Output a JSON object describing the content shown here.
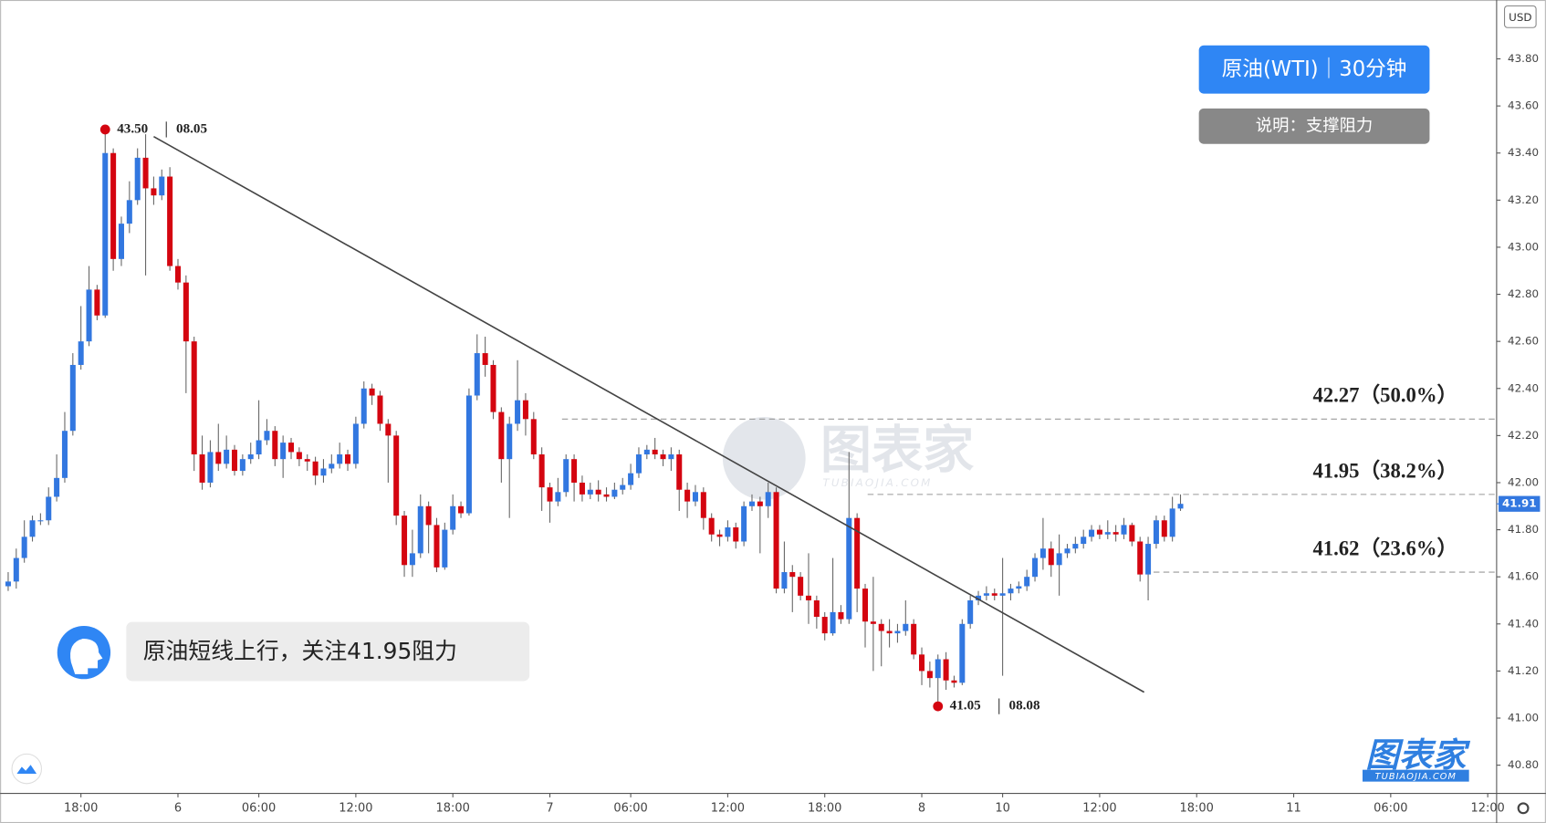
{
  "chart_data": {
    "type": "candlestick",
    "title": "原油(WTI)｜30分钟",
    "subtitle": "说明：支撑阻力",
    "comment": "原油短线上行，关注41.95阻力",
    "currency": "USD",
    "watermark": {
      "name": "图表家",
      "site": "TUBIAOJIA.COM"
    },
    "up_color": "#3277e0",
    "down_color": "#d40510",
    "open": [
      41.56,
      41.58,
      41.68,
      41.77,
      41.84,
      41.84,
      41.94,
      42.02,
      42.22,
      42.5,
      42.6,
      42.82,
      42.71,
      43.4,
      42.95,
      43.1,
      43.2,
      43.38,
      43.25,
      43.22,
      43.3,
      42.92,
      42.85,
      42.6,
      42.12,
      42.0,
      42.13,
      42.08,
      42.14,
      42.05,
      42.1,
      42.12,
      42.18,
      42.22,
      42.1,
      42.17,
      42.13,
      42.1,
      42.09,
      42.03,
      42.06,
      42.08,
      42.12,
      42.08,
      42.25,
      42.4,
      42.37,
      42.25,
      42.2,
      41.86,
      41.65,
      41.7,
      41.9,
      41.82,
      41.64,
      41.8,
      41.9,
      41.87,
      42.37,
      42.55,
      42.5,
      42.3,
      42.1,
      42.25,
      42.35,
      42.27,
      42.12,
      41.98,
      41.92,
      41.96,
      42.1,
      42.0,
      41.95,
      41.97,
      41.95,
      41.94,
      41.97,
      41.99,
      42.04,
      42.12,
      42.14,
      42.12,
      42.1,
      42.12,
      41.97,
      41.92,
      41.96,
      41.85,
      41.78,
      41.77,
      41.81,
      41.75,
      41.9,
      41.92,
      41.9,
      41.96,
      41.55,
      41.62,
      41.6,
      41.52,
      41.5,
      41.43,
      41.36,
      41.45,
      41.42,
      41.85,
      41.55,
      41.41,
      41.4,
      41.37,
      41.36,
      41.37,
      41.4,
      41.27,
      41.2,
      41.17,
      41.25,
      41.16,
      41.15,
      41.4,
      41.5,
      41.52,
      41.53,
      41.52,
      41.53,
      41.55,
      41.56,
      41.6,
      41.68,
      41.72,
      41.65,
      41.7,
      41.72,
      41.74,
      41.77,
      41.8,
      41.78,
      41.79,
      41.78,
      41.82,
      41.75,
      41.61,
      41.74,
      41.84,
      41.77,
      41.89
    ],
    "high": [
      41.62,
      41.72,
      41.84,
      41.86,
      41.87,
      41.98,
      42.12,
      42.3,
      42.55,
      42.75,
      42.92,
      42.84,
      43.5,
      43.42,
      43.13,
      43.28,
      43.42,
      43.48,
      43.3,
      43.33,
      43.34,
      42.95,
      42.88,
      42.62,
      42.2,
      42.18,
      42.25,
      42.2,
      42.16,
      42.12,
      42.17,
      42.35,
      42.27,
      42.24,
      42.2,
      42.19,
      42.15,
      42.12,
      42.11,
      42.1,
      42.12,
      42.17,
      42.14,
      42.28,
      42.43,
      42.42,
      42.39,
      42.27,
      42.22,
      41.88,
      41.8,
      41.95,
      41.92,
      41.85,
      41.83,
      41.95,
      41.92,
      42.4,
      42.63,
      42.62,
      42.52,
      42.32,
      42.28,
      42.52,
      42.38,
      42.3,
      42.15,
      42.0,
      42.02,
      42.12,
      42.12,
      42.03,
      42.0,
      42.01,
      41.98,
      42.0,
      42.02,
      42.08,
      42.15,
      42.16,
      42.19,
      42.14,
      42.15,
      42.14,
      42.0,
      41.99,
      41.98,
      41.87,
      41.8,
      41.84,
      41.83,
      41.92,
      41.95,
      41.94,
      42.0,
      41.98,
      41.75,
      41.65,
      41.62,
      41.7,
      41.52,
      41.45,
      41.68,
      41.48,
      42.13,
      41.87,
      41.57,
      41.6,
      41.42,
      41.42,
      41.4,
      41.5,
      41.42,
      41.3,
      41.24,
      41.27,
      41.28,
      41.18,
      41.42,
      41.52,
      41.54,
      41.56,
      41.55,
      41.68,
      41.57,
      41.58,
      41.63,
      41.7,
      41.85,
      41.75,
      41.78,
      41.74,
      41.77,
      41.8,
      41.82,
      41.82,
      41.84,
      41.82,
      41.85,
      41.83,
      41.77,
      41.77,
      41.86,
      41.86,
      41.94,
      41.95
    ],
    "low": [
      41.54,
      41.55,
      41.66,
      41.75,
      41.82,
      41.82,
      41.92,
      42.0,
      42.2,
      42.48,
      42.58,
      42.69,
      42.7,
      42.9,
      42.92,
      43.06,
      43.18,
      42.88,
      43.18,
      43.2,
      42.9,
      42.82,
      42.38,
      42.05,
      41.97,
      41.98,
      42.05,
      42.06,
      42.03,
      42.03,
      42.08,
      42.1,
      42.16,
      42.07,
      42.02,
      42.1,
      42.07,
      42.05,
      41.99,
      42.0,
      42.04,
      42.06,
      42.05,
      42.06,
      42.23,
      42.33,
      42.22,
      42.0,
      41.82,
      41.6,
      41.6,
      41.68,
      41.7,
      41.62,
      41.63,
      41.78,
      41.85,
      41.86,
      42.35,
      42.45,
      42.27,
      42.0,
      41.85,
      42.22,
      42.2,
      42.1,
      41.88,
      41.83,
      41.9,
      41.94,
      41.92,
      41.92,
      41.93,
      41.92,
      41.92,
      41.93,
      41.95,
      41.97,
      42.02,
      42.1,
      42.1,
      42.07,
      42.05,
      41.88,
      41.85,
      41.9,
      41.8,
      41.75,
      41.73,
      41.75,
      41.72,
      41.73,
      41.88,
      41.7,
      41.85,
      41.53,
      41.53,
      41.45,
      41.5,
      41.4,
      41.38,
      41.33,
      41.35,
      41.4,
      41.4,
      41.45,
      41.3,
      41.2,
      41.22,
      41.3,
      41.32,
      41.35,
      41.25,
      41.14,
      41.13,
      41.05,
      41.12,
      41.13,
      41.14,
      41.38,
      41.48,
      41.5,
      41.5,
      41.18,
      41.5,
      41.53,
      41.54,
      41.58,
      41.63,
      41.6,
      41.52,
      41.68,
      41.7,
      41.72,
      41.75,
      41.76,
      41.76,
      41.75,
      41.76,
      41.73,
      41.58,
      41.5,
      41.72,
      41.75,
      41.75,
      41.88
    ],
    "close": [
      41.58,
      41.68,
      41.77,
      41.84,
      41.84,
      41.94,
      42.02,
      42.22,
      42.5,
      42.6,
      42.82,
      42.71,
      43.4,
      42.95,
      43.1,
      43.2,
      43.38,
      43.25,
      43.22,
      43.3,
      42.92,
      42.85,
      42.6,
      42.12,
      42.0,
      42.13,
      42.08,
      42.14,
      42.05,
      42.1,
      42.12,
      42.18,
      42.22,
      42.1,
      42.17,
      42.13,
      42.1,
      42.09,
      42.03,
      42.06,
      42.08,
      42.12,
      42.08,
      42.25,
      42.4,
      42.37,
      42.25,
      42.2,
      41.86,
      41.65,
      41.7,
      41.9,
      41.82,
      41.64,
      41.8,
      41.9,
      41.87,
      42.37,
      42.55,
      42.5,
      42.3,
      42.1,
      42.25,
      42.35,
      42.27,
      42.12,
      41.98,
      41.92,
      41.96,
      42.1,
      42.0,
      41.95,
      41.97,
      41.95,
      41.94,
      41.97,
      41.99,
      42.04,
      42.12,
      42.14,
      42.12,
      42.1,
      42.12,
      41.97,
      41.92,
      41.96,
      41.85,
      41.78,
      41.77,
      41.81,
      41.75,
      41.9,
      41.92,
      41.9,
      41.96,
      41.55,
      41.62,
      41.6,
      41.52,
      41.5,
      41.43,
      41.36,
      41.45,
      41.42,
      41.85,
      41.55,
      41.41,
      41.4,
      41.37,
      41.36,
      41.37,
      41.4,
      41.27,
      41.2,
      41.17,
      41.25,
      41.16,
      41.15,
      41.4,
      41.5,
      41.52,
      41.53,
      41.52,
      41.53,
      41.55,
      41.56,
      41.6,
      41.68,
      41.72,
      41.65,
      41.7,
      41.72,
      41.74,
      41.77,
      41.8,
      41.78,
      41.79,
      41.78,
      41.82,
      41.75,
      41.61,
      41.74,
      41.84,
      41.77,
      41.89,
      41.91
    ],
    "xlim": [
      -1,
      184.1
    ],
    "xticks": [
      {
        "value": 9,
        "label": "18:00"
      },
      {
        "value": 21,
        "label": "6"
      },
      {
        "value": 31,
        "label": "06:00"
      },
      {
        "value": 43,
        "label": "12:00"
      },
      {
        "value": 55,
        "label": "18:00"
      },
      {
        "value": 67,
        "label": "7"
      },
      {
        "value": 77,
        "label": "06:00"
      },
      {
        "value": 89,
        "label": "12:00"
      },
      {
        "value": 101,
        "label": "18:00"
      },
      {
        "value": 113,
        "label": "8"
      },
      {
        "value": 123,
        "label": "10"
      },
      {
        "value": 135,
        "label": "12:00"
      },
      {
        "value": 147,
        "label": "18:00"
      },
      {
        "value": 159,
        "label": "11"
      },
      {
        "value": 171,
        "label": "06:00"
      },
      {
        "value": 183,
        "label": "12:00"
      }
    ],
    "ylim": [
      40.68,
      44.05
    ],
    "yticks": [
      {
        "value": 40.8,
        "label": "40.80"
      },
      {
        "value": 41.0,
        "label": "41.00"
      },
      {
        "value": 41.2,
        "label": "41.20"
      },
      {
        "value": 41.4,
        "label": "41.40"
      },
      {
        "value": 41.6,
        "label": "41.60"
      },
      {
        "value": 41.8,
        "label": "41.80"
      },
      {
        "value": 42.0,
        "label": "42.00"
      },
      {
        "value": 42.2,
        "label": "42.20"
      },
      {
        "value": 42.4,
        "label": "42.40"
      },
      {
        "value": 42.6,
        "label": "42.60"
      },
      {
        "value": 42.8,
        "label": "42.80"
      },
      {
        "value": 43.0,
        "label": "43.00"
      },
      {
        "value": 43.2,
        "label": "43.20"
      },
      {
        "value": 43.4,
        "label": "43.40"
      },
      {
        "value": 43.6,
        "label": "43.60"
      },
      {
        "value": 43.8,
        "label": "43.80"
      }
    ],
    "extremes": [
      {
        "value": 43.5,
        "label": "43.50",
        "date": "08.05"
      },
      {
        "value": 41.05,
        "label": "41.05",
        "date": "08.08"
      }
    ],
    "levels": [
      {
        "value": 42.27,
        "label": "42.27（50.0%）"
      },
      {
        "value": 41.95,
        "label": "41.95（38.2%）"
      },
      {
        "value": 41.62,
        "label": "41.62（23.6%）"
      }
    ],
    "trendline": {
      "x": [
        18,
        140.5
      ],
      "y": [
        43.47,
        41.11
      ]
    }
  }
}
